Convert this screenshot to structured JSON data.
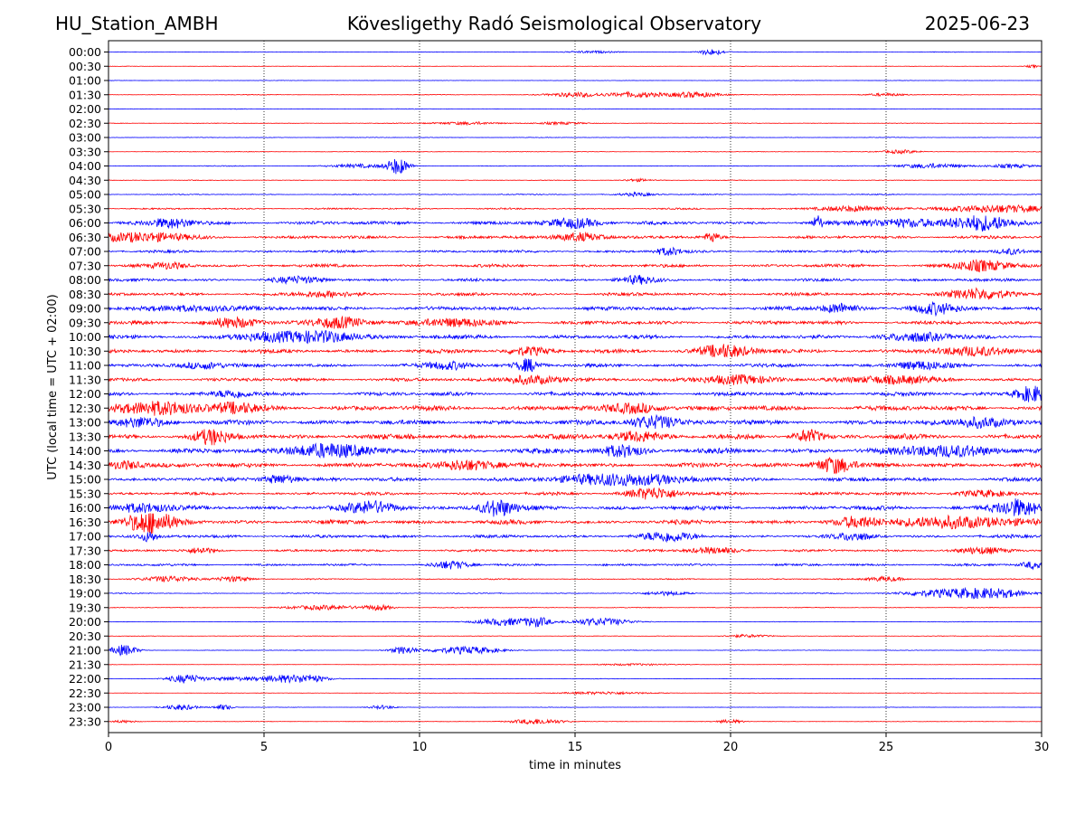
{
  "header": {
    "station": "HU_Station_AMBH",
    "observatory": "Kövesligethy Radó Seismological Observatory",
    "date": "2025-06-23"
  },
  "chart_data": {
    "type": "line",
    "title": "Kövesligethy Radó Seismological Observatory",
    "xlabel": "time in minutes",
    "ylabel": "UTC (local time = UTC + 02:00)",
    "xlim": [
      0,
      30
    ],
    "x_ticks": [
      0,
      5,
      10,
      15,
      20,
      25,
      30
    ],
    "grid": "vertical dotted lines at every 5 minutes",
    "series_colors": [
      "#0000ff",
      "#ff0000"
    ],
    "rows": [
      {
        "label": "00:00",
        "noise": 0.3,
        "events": [
          {
            "t": 19.4,
            "a": 3.5,
            "w": 0.3
          },
          {
            "t": 15.5,
            "a": 1,
            "w": 0.6
          }
        ]
      },
      {
        "label": "00:30",
        "noise": 0.2,
        "events": [
          {
            "t": 29.7,
            "a": 1.5,
            "w": 0.15
          }
        ]
      },
      {
        "label": "01:00",
        "noise": 0.2,
        "events": []
      },
      {
        "label": "01:30",
        "noise": 0.35,
        "events": [
          {
            "t": 15,
            "a": 2.5,
            "w": 0.6
          },
          {
            "t": 17,
            "a": 3,
            "w": 0.6
          },
          {
            "t": 18.8,
            "a": 3,
            "w": 0.6
          },
          {
            "t": 25,
            "a": 1.5,
            "w": 0.4
          }
        ]
      },
      {
        "label": "02:00",
        "noise": 0.3,
        "events": []
      },
      {
        "label": "02:30",
        "noise": 0.3,
        "events": [
          {
            "t": 11.5,
            "a": 1.5,
            "w": 0.8
          },
          {
            "t": 14.5,
            "a": 1.2,
            "w": 0.6
          }
        ]
      },
      {
        "label": "03:00",
        "noise": 0.3,
        "events": []
      },
      {
        "label": "03:30",
        "noise": 0.3,
        "events": [
          {
            "t": 25.5,
            "a": 2,
            "w": 0.4
          }
        ]
      },
      {
        "label": "04:00",
        "noise": 0.4,
        "events": [
          {
            "t": 9.3,
            "a": 9,
            "w": 0.25
          },
          {
            "t": 8,
            "a": 2,
            "w": 0.6
          },
          {
            "t": 26.5,
            "a": 2.5,
            "w": 0.8
          },
          {
            "t": 29,
            "a": 2,
            "w": 0.5
          }
        ]
      },
      {
        "label": "04:30",
        "noise": 0.35,
        "events": [
          {
            "t": 17,
            "a": 1.5,
            "w": 0.3
          }
        ]
      },
      {
        "label": "05:00",
        "noise": 0.5,
        "events": [
          {
            "t": 17,
            "a": 2,
            "w": 0.4
          }
        ]
      },
      {
        "label": "05:30",
        "noise": 0.8,
        "events": [
          {
            "t": 28.5,
            "a": 4,
            "w": 1.2
          },
          {
            "t": 24,
            "a": 2.5,
            "w": 1
          }
        ]
      },
      {
        "label": "06:00",
        "noise": 1.8,
        "events": [
          {
            "t": 2,
            "a": 5,
            "w": 0.5
          },
          {
            "t": 15,
            "a": 5,
            "w": 0.6
          },
          {
            "t": 22.8,
            "a": 8,
            "w": 0.1
          },
          {
            "t": 28,
            "a": 8,
            "w": 0.7
          },
          {
            "t": 25.5,
            "a": 4,
            "w": 1
          }
        ]
      },
      {
        "label": "06:30",
        "noise": 1.6,
        "events": [
          {
            "t": 1,
            "a": 5,
            "w": 1
          },
          {
            "t": 15.2,
            "a": 5,
            "w": 0.5
          },
          {
            "t": 19.4,
            "a": 5,
            "w": 0.15
          }
        ]
      },
      {
        "label": "07:00",
        "noise": 1.3,
        "events": [
          {
            "t": 18,
            "a": 4,
            "w": 0.3
          },
          {
            "t": 29,
            "a": 3,
            "w": 0.3
          }
        ]
      },
      {
        "label": "07:30",
        "noise": 1.6,
        "events": [
          {
            "t": 28,
            "a": 6,
            "w": 0.6
          },
          {
            "t": 2,
            "a": 3,
            "w": 0.4
          }
        ]
      },
      {
        "label": "08:00",
        "noise": 1.5,
        "events": [
          {
            "t": 6,
            "a": 3,
            "w": 0.6
          },
          {
            "t": 17,
            "a": 4,
            "w": 0.4
          }
        ]
      },
      {
        "label": "08:30",
        "noise": 1.6,
        "events": [
          {
            "t": 28,
            "a": 5,
            "w": 0.8
          },
          {
            "t": 7,
            "a": 3,
            "w": 0.6
          }
        ]
      },
      {
        "label": "09:00",
        "noise": 2.0,
        "events": [
          {
            "t": 23.5,
            "a": 5,
            "w": 0.4
          },
          {
            "t": 26.5,
            "a": 6,
            "w": 0.5
          },
          {
            "t": 3,
            "a": 3,
            "w": 1
          }
        ]
      },
      {
        "label": "09:30",
        "noise": 2.0,
        "events": [
          {
            "t": 4,
            "a": 5,
            "w": 0.6
          },
          {
            "t": 7.5,
            "a": 6,
            "w": 0.6
          },
          {
            "t": 11,
            "a": 4,
            "w": 0.8
          }
        ]
      },
      {
        "label": "10:00",
        "noise": 2.0,
        "events": [
          {
            "t": 7,
            "a": 6,
            "w": 0.8
          },
          {
            "t": 5,
            "a": 4,
            "w": 0.8
          },
          {
            "t": 26,
            "a": 4,
            "w": 0.8
          }
        ]
      },
      {
        "label": "10:30",
        "noise": 2.0,
        "events": [
          {
            "t": 19.8,
            "a": 7,
            "w": 0.6
          },
          {
            "t": 13.5,
            "a": 4,
            "w": 0.5
          },
          {
            "t": 28,
            "a": 4,
            "w": 1
          }
        ]
      },
      {
        "label": "11:00",
        "noise": 1.8,
        "events": [
          {
            "t": 13.5,
            "a": 7,
            "w": 0.3
          },
          {
            "t": 3,
            "a": 4,
            "w": 0.5
          },
          {
            "t": 11,
            "a": 4,
            "w": 0.5
          },
          {
            "t": 26,
            "a": 4,
            "w": 0.6
          }
        ]
      },
      {
        "label": "11:30",
        "noise": 1.8,
        "events": [
          {
            "t": 13.5,
            "a": 5,
            "w": 0.6
          },
          {
            "t": 20,
            "a": 4,
            "w": 1
          },
          {
            "t": 25,
            "a": 4,
            "w": 1
          }
        ]
      },
      {
        "label": "12:00",
        "noise": 2.0,
        "events": [
          {
            "t": 29.7,
            "a": 9,
            "w": 0.4
          },
          {
            "t": 4,
            "a": 4,
            "w": 0.4
          }
        ]
      },
      {
        "label": "12:30",
        "noise": 2.6,
        "events": [
          {
            "t": 1.5,
            "a": 7,
            "w": 1
          },
          {
            "t": 4,
            "a": 5,
            "w": 0.5
          },
          {
            "t": 17,
            "a": 5,
            "w": 0.6
          }
        ]
      },
      {
        "label": "13:00",
        "noise": 2.4,
        "events": [
          {
            "t": 17.5,
            "a": 7,
            "w": 0.6
          },
          {
            "t": 1,
            "a": 5,
            "w": 0.6
          },
          {
            "t": 28,
            "a": 6,
            "w": 0.6
          }
        ]
      },
      {
        "label": "13:30",
        "noise": 2.6,
        "events": [
          {
            "t": 3.3,
            "a": 7,
            "w": 0.4
          },
          {
            "t": 22.5,
            "a": 7,
            "w": 0.3
          },
          {
            "t": 17,
            "a": 5,
            "w": 0.6
          }
        ]
      },
      {
        "label": "14:00",
        "noise": 2.6,
        "events": [
          {
            "t": 7,
            "a": 8,
            "w": 0.8
          },
          {
            "t": 16.5,
            "a": 6,
            "w": 0.5
          },
          {
            "t": 27,
            "a": 6,
            "w": 1
          }
        ]
      },
      {
        "label": "14:30",
        "noise": 2.4,
        "events": [
          {
            "t": 23.3,
            "a": 9,
            "w": 0.4
          },
          {
            "t": 11.5,
            "a": 6,
            "w": 0.6
          },
          {
            "t": 0.5,
            "a": 5,
            "w": 0.4
          }
        ]
      },
      {
        "label": "15:00",
        "noise": 2.0,
        "events": [
          {
            "t": 16.5,
            "a": 7,
            "w": 1.2
          },
          {
            "t": 5.5,
            "a": 5,
            "w": 0.4
          }
        ]
      },
      {
        "label": "15:30",
        "noise": 1.6,
        "events": [
          {
            "t": 17.5,
            "a": 6,
            "w": 0.6
          },
          {
            "t": 28,
            "a": 3,
            "w": 0.6
          }
        ]
      },
      {
        "label": "16:00",
        "noise": 2.2,
        "events": [
          {
            "t": 12.5,
            "a": 9,
            "w": 0.4
          },
          {
            "t": 8.5,
            "a": 6,
            "w": 0.6
          },
          {
            "t": 29.2,
            "a": 9,
            "w": 0.5
          },
          {
            "t": 1,
            "a": 5,
            "w": 0.6
          }
        ]
      },
      {
        "label": "16:30",
        "noise": 2.2,
        "events": [
          {
            "t": 1.3,
            "a": 11,
            "w": 0.6
          },
          {
            "t": 27,
            "a": 6,
            "w": 1.5
          },
          {
            "t": 24,
            "a": 4,
            "w": 0.4
          }
        ]
      },
      {
        "label": "17:00",
        "noise": 1.6,
        "events": [
          {
            "t": 18,
            "a": 5,
            "w": 0.6
          },
          {
            "t": 1.3,
            "a": 5,
            "w": 0.2
          },
          {
            "t": 24,
            "a": 4,
            "w": 0.4
          }
        ]
      },
      {
        "label": "17:30",
        "noise": 1.2,
        "events": [
          {
            "t": 3,
            "a": 3,
            "w": 0.3
          },
          {
            "t": 19.5,
            "a": 3,
            "w": 0.6
          },
          {
            "t": 28,
            "a": 3,
            "w": 0.6
          }
        ]
      },
      {
        "label": "18:00",
        "noise": 1.2,
        "events": [
          {
            "t": 11,
            "a": 4,
            "w": 0.4
          },
          {
            "t": 29.8,
            "a": 4,
            "w": 0.3
          }
        ]
      },
      {
        "label": "18:30",
        "noise": 0.6,
        "events": [
          {
            "t": 2,
            "a": 3,
            "w": 0.6
          },
          {
            "t": 4,
            "a": 3,
            "w": 0.4
          },
          {
            "t": 25,
            "a": 3,
            "w": 0.4
          }
        ]
      },
      {
        "label": "19:00",
        "noise": 0.5,
        "events": [
          {
            "t": 27,
            "a": 4,
            "w": 1
          },
          {
            "t": 28.5,
            "a": 4,
            "w": 0.8
          },
          {
            "t": 18,
            "a": 2,
            "w": 0.5
          }
        ]
      },
      {
        "label": "19:30",
        "noise": 0.4,
        "events": [
          {
            "t": 7,
            "a": 2.5,
            "w": 0.8
          },
          {
            "t": 8.7,
            "a": 3,
            "w": 0.3
          }
        ]
      },
      {
        "label": "20:00",
        "noise": 0.3,
        "events": [
          {
            "t": 12.7,
            "a": 4,
            "w": 0.6
          },
          {
            "t": 13.8,
            "a": 5,
            "w": 0.3
          },
          {
            "t": 15.8,
            "a": 4,
            "w": 0.7
          }
        ]
      },
      {
        "label": "20:30",
        "noise": 0.3,
        "events": [
          {
            "t": 20.5,
            "a": 1.5,
            "w": 0.5
          }
        ]
      },
      {
        "label": "21:00",
        "noise": 0.3,
        "events": [
          {
            "t": 0.5,
            "a": 6,
            "w": 0.3
          },
          {
            "t": 9.5,
            "a": 4,
            "w": 0.3
          },
          {
            "t": 11.5,
            "a": 4,
            "w": 0.8
          }
        ]
      },
      {
        "label": "21:30",
        "noise": 0.2,
        "events": [
          {
            "t": 17,
            "a": 1,
            "w": 1
          }
        ]
      },
      {
        "label": "22:00",
        "noise": 0.3,
        "events": [
          {
            "t": 2.5,
            "a": 5,
            "w": 0.4
          },
          {
            "t": 5.5,
            "a": 4,
            "w": 0.5
          },
          {
            "t": 6.5,
            "a": 4,
            "w": 0.4
          },
          {
            "t": 4,
            "a": 2,
            "w": 0.5
          }
        ]
      },
      {
        "label": "22:30",
        "noise": 0.2,
        "events": [
          {
            "t": 16,
            "a": 1.5,
            "w": 1
          }
        ]
      },
      {
        "label": "23:00",
        "noise": 0.2,
        "events": [
          {
            "t": 2.3,
            "a": 3,
            "w": 0.4
          },
          {
            "t": 3.7,
            "a": 3,
            "w": 0.2
          },
          {
            "t": 8.8,
            "a": 2,
            "w": 0.3
          }
        ]
      },
      {
        "label": "23:30",
        "noise": 0.25,
        "events": [
          {
            "t": 13.8,
            "a": 3,
            "w": 0.6
          },
          {
            "t": 20,
            "a": 2,
            "w": 0.3
          },
          {
            "t": 0.5,
            "a": 1.5,
            "w": 0.3
          }
        ]
      }
    ]
  }
}
